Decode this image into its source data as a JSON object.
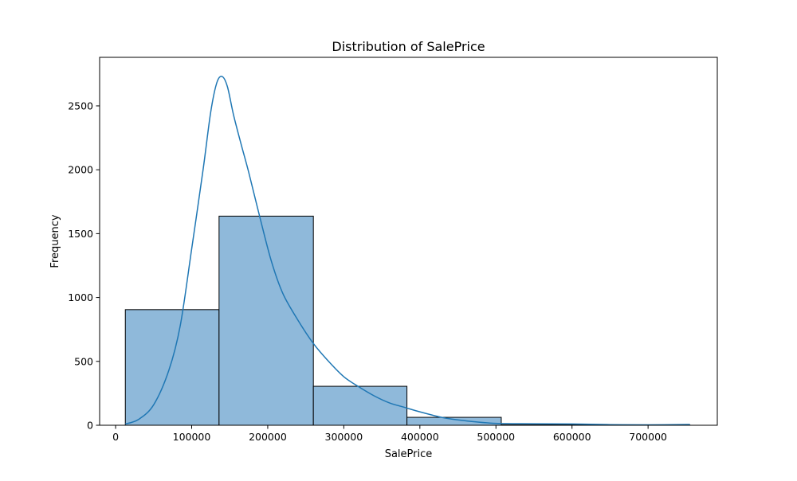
{
  "chart_data": {
    "type": "bar",
    "title": "Distribution of SalePrice",
    "xlabel": "SalePrice",
    "ylabel": "Frequency",
    "xlim": [
      -21000,
      791000
    ],
    "ylim": [
      0,
      2880
    ],
    "x_ticks": [
      0,
      100000,
      200000,
      300000,
      400000,
      500000,
      600000,
      700000
    ],
    "x_tick_labels": [
      "0",
      "100000",
      "200000",
      "300000",
      "400000",
      "500000",
      "600000",
      "700000"
    ],
    "y_ticks": [
      0,
      500,
      1000,
      1500,
      2000,
      2500
    ],
    "y_tick_labels": [
      "0",
      "500",
      "1000",
      "1500",
      "2000",
      "2500"
    ],
    "bins": [
      {
        "start": 12789,
        "end": 136000,
        "count": 905
      },
      {
        "start": 136000,
        "end": 260000,
        "count": 1637
      },
      {
        "start": 260000,
        "end": 383000,
        "count": 305
      },
      {
        "start": 383000,
        "end": 507000,
        "count": 62
      },
      {
        "start": 507000,
        "end": 630000,
        "count": 4
      },
      {
        "start": 630000,
        "end": 755000,
        "count": 2
      }
    ],
    "kde": {
      "x": [
        12789,
        30000,
        50000,
        70000,
        85000,
        100000,
        115000,
        125000,
        133000,
        140000,
        147000,
        155000,
        165000,
        175000,
        190000,
        205000,
        220000,
        240000,
        260000,
        280000,
        300000,
        320000,
        340000,
        360000,
        380000,
        400000,
        430000,
        460000,
        500000,
        550000,
        600000,
        650000,
        700000,
        755000
      ],
      "y": [
        10,
        45,
        160,
        430,
        780,
        1380,
        2000,
        2450,
        2680,
        2730,
        2650,
        2430,
        2200,
        1980,
        1620,
        1280,
        1030,
        820,
        640,
        500,
        380,
        300,
        230,
        175,
        140,
        105,
        60,
        35,
        15,
        12,
        10,
        5,
        3,
        6
      ]
    },
    "grid": false,
    "legend": "none",
    "colors": {
      "bar_fill": "#8fb9da",
      "bar_edge": "#000000",
      "kde_line": "#1f77b4"
    }
  }
}
